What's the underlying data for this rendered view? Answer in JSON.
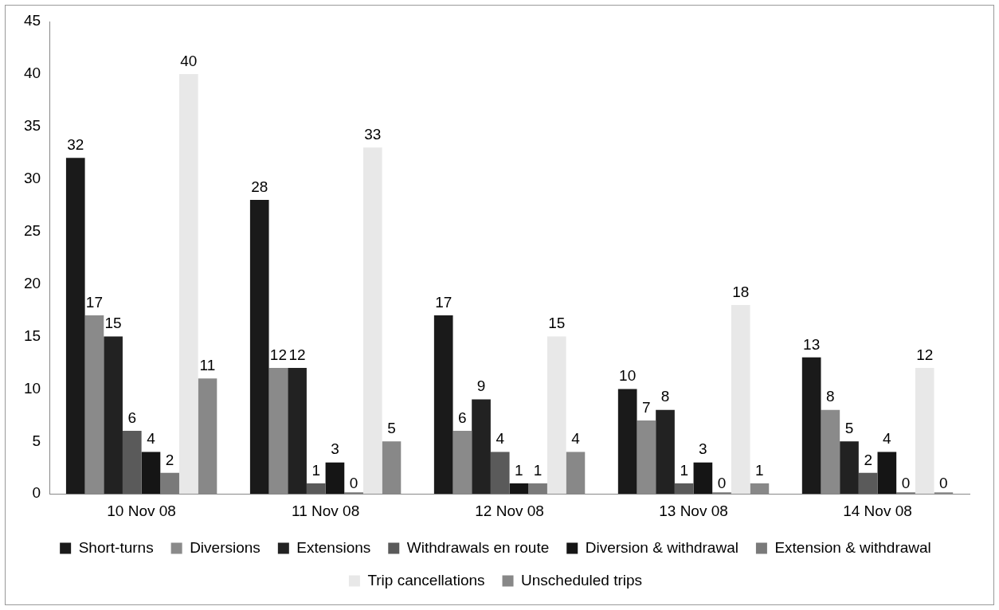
{
  "chart_data": {
    "type": "bar",
    "categories": [
      "10 Nov 08",
      "11 Nov 08",
      "12 Nov 08",
      "13 Nov 08",
      "14 Nov 08"
    ],
    "series": [
      {
        "name": "Short-turns",
        "color": "#1a1a1a",
        "values": [
          32,
          28,
          17,
          10,
          13
        ]
      },
      {
        "name": "Diversions",
        "color": "#8a8a8a",
        "values": [
          17,
          12,
          6,
          7,
          8
        ]
      },
      {
        "name": "Extensions",
        "color": "#222222",
        "values": [
          15,
          12,
          9,
          8,
          5
        ]
      },
      {
        "name": "Withdrawals en route",
        "color": "#5a5a5a",
        "values": [
          6,
          1,
          4,
          1,
          2
        ]
      },
      {
        "name": "Diversion & withdrawal",
        "color": "#151515",
        "values": [
          4,
          3,
          1,
          3,
          4
        ]
      },
      {
        "name": "Extension & withdrawal",
        "color": "#7a7a7a",
        "values": [
          2,
          0,
          1,
          0,
          0
        ]
      },
      {
        "name": "Trip cancellations",
        "color": "#e8e8e8",
        "values": [
          40,
          33,
          15,
          18,
          12
        ]
      },
      {
        "name": "Unscheduled trips",
        "color": "#888888",
        "values": [
          11,
          5,
          4,
          1,
          0
        ]
      }
    ],
    "ylim": [
      0,
      45
    ],
    "yticks": [
      0,
      5,
      10,
      15,
      20,
      25,
      30,
      35,
      40,
      45
    ],
    "grid": false,
    "legend": "bottom",
    "data_labels": true
  }
}
